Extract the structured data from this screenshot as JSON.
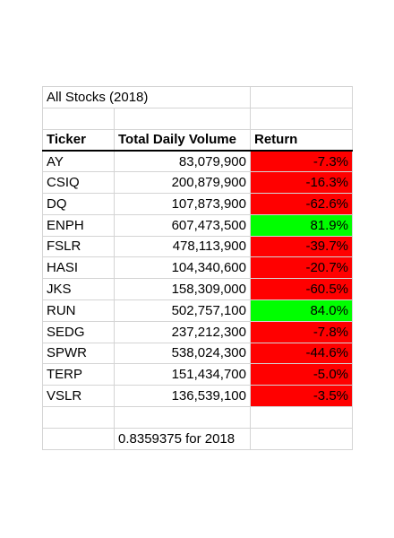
{
  "title": "All Stocks (2018)",
  "headers": {
    "ticker": "Ticker",
    "volume": "Total Daily Volume",
    "return": "Return"
  },
  "rows": [
    {
      "ticker": "AY",
      "volume": "83,079,900",
      "return": "-7.3%",
      "status": "negative"
    },
    {
      "ticker": "CSIQ",
      "volume": "200,879,900",
      "return": "-16.3%",
      "status": "negative"
    },
    {
      "ticker": "DQ",
      "volume": "107,873,900",
      "return": "-62.6%",
      "status": "negative"
    },
    {
      "ticker": "ENPH",
      "volume": "607,473,500",
      "return": "81.9%",
      "status": "positive"
    },
    {
      "ticker": "FSLR",
      "volume": "478,113,900",
      "return": "-39.7%",
      "status": "negative"
    },
    {
      "ticker": "HASI",
      "volume": "104,340,600",
      "return": "-20.7%",
      "status": "negative"
    },
    {
      "ticker": "JKS",
      "volume": "158,309,000",
      "return": "-60.5%",
      "status": "negative"
    },
    {
      "ticker": "RUN",
      "volume": "502,757,100",
      "return": "84.0%",
      "status": "positive"
    },
    {
      "ticker": "SEDG",
      "volume": "237,212,300",
      "return": "-7.8%",
      "status": "negative"
    },
    {
      "ticker": "SPWR",
      "volume": "538,024,300",
      "return": "-44.6%",
      "status": "negative"
    },
    {
      "ticker": "TERP",
      "volume": "151,434,700",
      "return": "-5.0%",
      "status": "negative"
    },
    {
      "ticker": "VSLR",
      "volume": "136,539,100",
      "return": "-3.5%",
      "status": "negative"
    }
  ],
  "runtime_note": "0.8359375 for 2018",
  "colors": {
    "negative": "#ff0000",
    "positive": "#00ff00",
    "gridline": "#d4d4d4"
  }
}
